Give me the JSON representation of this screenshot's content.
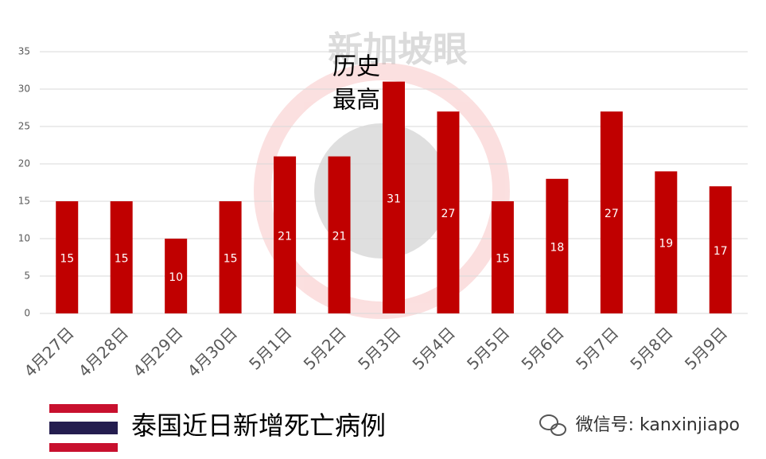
{
  "chart_data": {
    "type": "bar",
    "title": "泰国近日新增死亡病例",
    "annotation": [
      "历史",
      "最高"
    ],
    "watermark": "新加坡眼",
    "source": "微信号: kanxinjiapo",
    "categories": [
      "4月27日",
      "4月28日",
      "4月29日",
      "4月30日",
      "5月1日",
      "5月2日",
      "5月3日",
      "5月4日",
      "5月5日",
      "5月6日",
      "5月7日",
      "5月8日",
      "5月9日"
    ],
    "values": [
      15,
      15,
      10,
      15,
      21,
      21,
      31,
      27,
      15,
      18,
      27,
      19,
      17
    ],
    "color": "#c00000",
    "ylim": [
      0,
      35
    ],
    "yticks": [
      0,
      5,
      10,
      15,
      20,
      25,
      30,
      35
    ],
    "grid": true
  }
}
